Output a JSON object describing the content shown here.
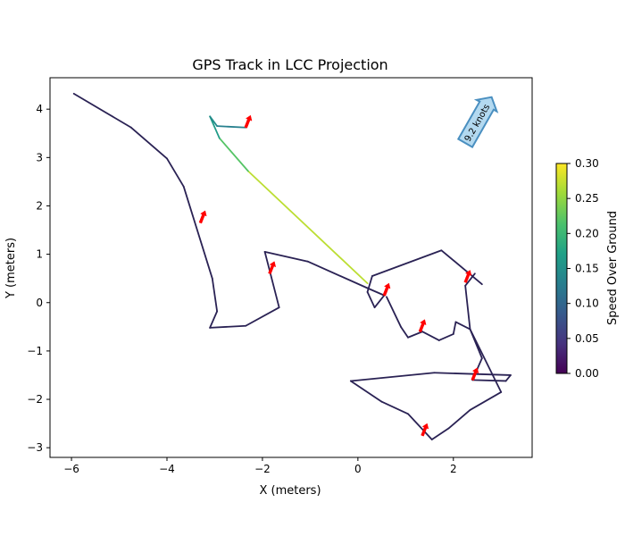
{
  "chart_data": {
    "type": "line",
    "title": "GPS Track in LCC Projection",
    "xlabel": "X (meters)",
    "ylabel": "Y (meters)",
    "xlim": [
      -6.45,
      3.65
    ],
    "ylim": [
      -3.2,
      4.65
    ],
    "xticks": [
      -6,
      -4,
      -2,
      0,
      2
    ],
    "yticks": [
      -3,
      -2,
      -1,
      0,
      1,
      2,
      3,
      4
    ],
    "track": [
      {
        "x": 2.6,
        "y": 0.38,
        "speed": 0.0
      },
      {
        "x": 1.75,
        "y": 1.08,
        "speed": 0.0
      },
      {
        "x": 0.3,
        "y": 0.55,
        "speed": 0.0
      },
      {
        "x": 0.2,
        "y": 0.22,
        "speed": 0.0
      },
      {
        "x": 0.35,
        "y": -0.1,
        "speed": 0.0
      },
      {
        "x": 0.55,
        "y": 0.15,
        "speed": 0.0
      },
      {
        "x": 0.2,
        "y": 0.3,
        "speed": 0.0
      },
      {
        "x": -1.05,
        "y": 0.85,
        "speed": 0.0
      },
      {
        "x": -1.95,
        "y": 1.05,
        "speed": 0.0
      },
      {
        "x": -1.65,
        "y": -0.1,
        "speed": 0.0
      },
      {
        "x": -2.35,
        "y": -0.48,
        "speed": 0.0
      },
      {
        "x": -3.1,
        "y": -0.52,
        "speed": 0.0
      },
      {
        "x": -2.95,
        "y": -0.18,
        "speed": 0.0
      },
      {
        "x": -3.05,
        "y": 0.5,
        "speed": 0.0
      },
      {
        "x": -3.65,
        "y": 2.4,
        "speed": 0.0
      },
      {
        "x": -4.0,
        "y": 2.98,
        "speed": 0.0
      },
      {
        "x": -4.75,
        "y": 3.62,
        "speed": 0.0
      },
      {
        "x": -5.95,
        "y": 4.32,
        "speed": 0.0
      }
    ],
    "track_segment_2": [
      {
        "x": 0.2,
        "y": 0.4,
        "speed": 0.28
      },
      {
        "x": -2.3,
        "y": 2.72,
        "speed": 0.26
      },
      {
        "x": -2.9,
        "y": 3.4,
        "speed": 0.18
      },
      {
        "x": -3.1,
        "y": 3.85,
        "speed": 0.15
      },
      {
        "x": -2.95,
        "y": 3.65,
        "speed": 0.14
      },
      {
        "x": -2.35,
        "y": 3.62,
        "speed": 0.12
      }
    ],
    "track_segment_3": [
      {
        "x": 0.6,
        "y": 0.12,
        "speed": 0.0
      },
      {
        "x": 0.9,
        "y": -0.5,
        "speed": 0.0
      },
      {
        "x": 1.05,
        "y": -0.72,
        "speed": 0.0
      },
      {
        "x": 1.35,
        "y": -0.6,
        "speed": 0.0
      },
      {
        "x": 1.7,
        "y": -0.78,
        "speed": 0.0
      },
      {
        "x": 2.0,
        "y": -0.65,
        "speed": 0.0
      },
      {
        "x": 2.05,
        "y": -0.4,
        "speed": 0.0
      },
      {
        "x": 2.35,
        "y": -0.55,
        "speed": 0.0
      },
      {
        "x": 2.6,
        "y": -1.15,
        "speed": 0.0
      },
      {
        "x": 2.4,
        "y": -1.6,
        "speed": 0.0
      },
      {
        "x": 3.1,
        "y": -1.62,
        "speed": 0.0
      },
      {
        "x": 3.2,
        "y": -1.5,
        "speed": 0.0
      },
      {
        "x": 1.6,
        "y": -1.45,
        "speed": 0.0
      },
      {
        "x": -0.15,
        "y": -1.62,
        "speed": 0.0
      },
      {
        "x": 0.5,
        "y": -2.05,
        "speed": 0.0
      },
      {
        "x": 1.05,
        "y": -2.3,
        "speed": 0.0
      },
      {
        "x": 1.55,
        "y": -2.83,
        "speed": 0.0
      },
      {
        "x": 1.9,
        "y": -2.6,
        "speed": 0.0
      },
      {
        "x": 2.35,
        "y": -2.22,
        "speed": 0.0
      },
      {
        "x": 3.0,
        "y": -1.85,
        "speed": 0.0
      },
      {
        "x": 2.35,
        "y": -0.55,
        "speed": 0.0
      },
      {
        "x": 2.25,
        "y": 0.35,
        "speed": 0.0
      },
      {
        "x": 2.45,
        "y": 0.6,
        "speed": 0.0
      }
    ],
    "arrows": [
      {
        "x": -2.35,
        "y": 3.62,
        "dx": 0.1,
        "dy": 0.25
      },
      {
        "x": -3.3,
        "y": 1.65,
        "dx": 0.1,
        "dy": 0.25
      },
      {
        "x": -1.85,
        "y": 0.6,
        "dx": 0.1,
        "dy": 0.25
      },
      {
        "x": 0.55,
        "y": 0.15,
        "dx": 0.1,
        "dy": 0.25
      },
      {
        "x": 2.25,
        "y": 0.42,
        "dx": 0.1,
        "dy": 0.25
      },
      {
        "x": 1.3,
        "y": -0.6,
        "dx": 0.1,
        "dy": 0.25
      },
      {
        "x": 2.4,
        "y": -1.6,
        "dx": 0.1,
        "dy": 0.25
      },
      {
        "x": 1.35,
        "y": -2.75,
        "dx": 0.1,
        "dy": 0.25
      }
    ],
    "speed_annotation": {
      "text": "9.2 knots",
      "x": 2.25,
      "y": 3.3,
      "dx": 0.55,
      "dy": 0.95
    },
    "colorbar": {
      "label": "Speed Over Ground",
      "range": [
        0.0,
        0.3
      ],
      "ticks": [
        "0.00",
        "0.05",
        "0.10",
        "0.15",
        "0.20",
        "0.25",
        "0.30"
      ],
      "colormap": "viridis"
    },
    "colors": {
      "low": "#2a2254",
      "arrow": "#ff0000",
      "annotation_fill": "#b3d9f0",
      "annotation_edge": "#4a8fc0"
    }
  }
}
